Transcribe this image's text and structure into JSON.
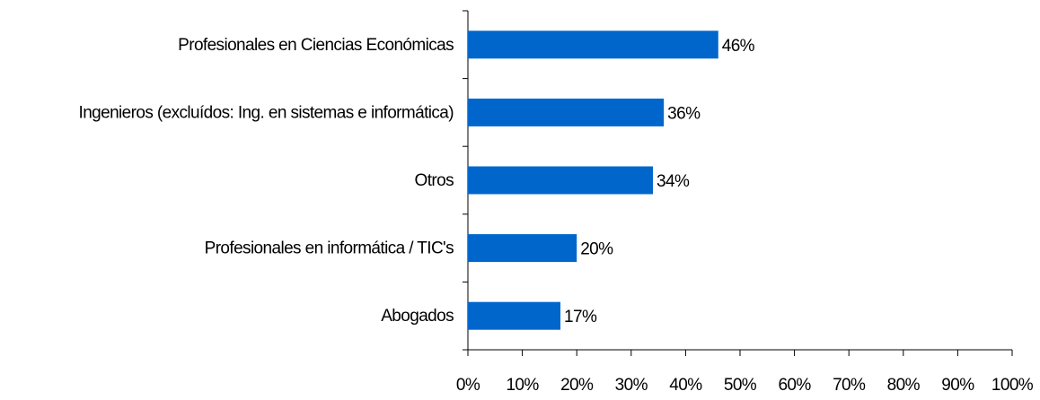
{
  "chart_data": {
    "type": "barh",
    "categories": [
      "Profesionales en Ciencias Económicas",
      "Ingenieros (excluídos: Ing. en sistemas e informática)",
      "Otros",
      "Profesionales en informática / TIC's",
      "Abogados"
    ],
    "values": [
      46,
      36,
      34,
      20,
      17
    ],
    "value_labels": [
      "46%",
      "36%",
      "34%",
      "20%",
      "17%"
    ],
    "color": "#0066cc",
    "xlim": [
      0,
      100
    ],
    "xticks": [
      {
        "value": 0,
        "label": "0%"
      },
      {
        "value": 10,
        "label": "10%"
      },
      {
        "value": 20,
        "label": "20%"
      },
      {
        "value": 30,
        "label": "30%"
      },
      {
        "value": 40,
        "label": "40%"
      },
      {
        "value": 50,
        "label": "50%"
      },
      {
        "value": 60,
        "label": "60%"
      },
      {
        "value": 70,
        "label": "70%"
      },
      {
        "value": 80,
        "label": "80%"
      },
      {
        "value": 90,
        "label": "90%"
      },
      {
        "value": 100,
        "label": "100%"
      }
    ],
    "grid": false
  }
}
